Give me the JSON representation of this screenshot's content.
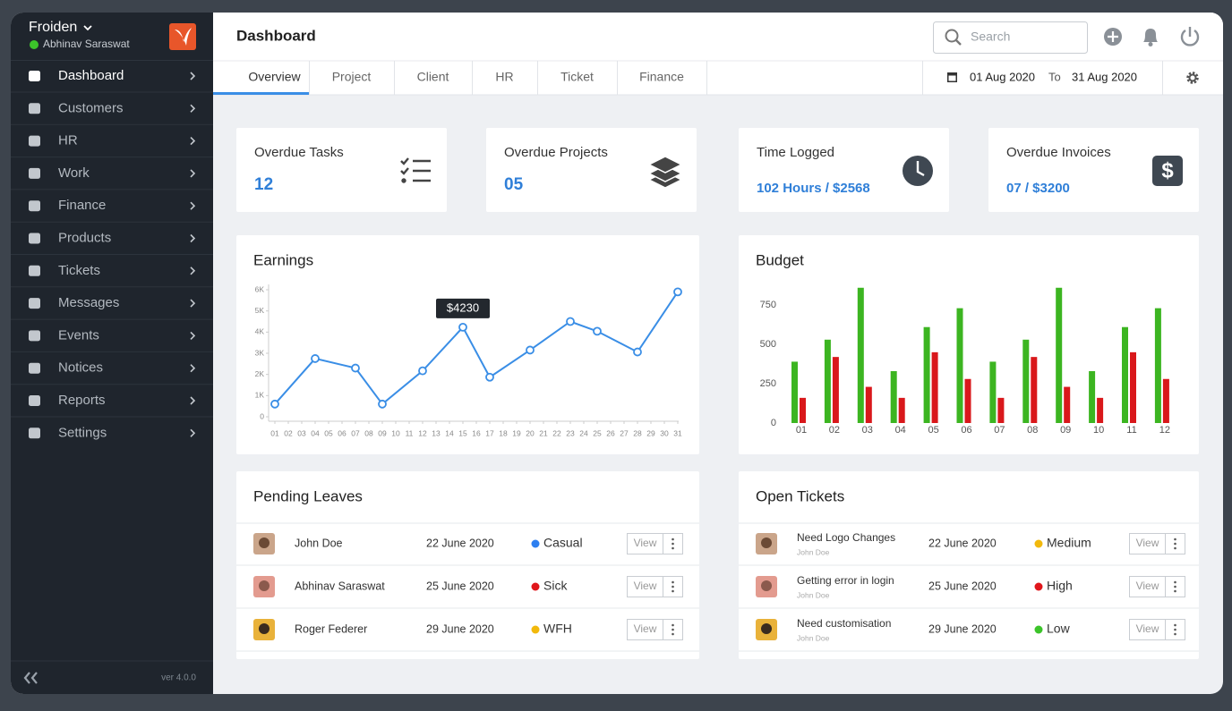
{
  "sidebar": {
    "brand": "Froiden",
    "user": "Abhinav Saraswat",
    "menu": [
      "Dashboard",
      "Customers",
      "HR",
      "Work",
      "Finance",
      "Products",
      "Tickets",
      "Messages",
      "Events",
      "Notices",
      "Reports",
      "Settings"
    ],
    "version": "ver 4.0.0"
  },
  "header": {
    "title": "Dashboard",
    "search_placeholder": "Search"
  },
  "tabs": [
    "Overview",
    "Project",
    "Client",
    "HR",
    "Ticket",
    "Finance"
  ],
  "date_range": {
    "from": "01 Aug 2020",
    "separator": "To",
    "to": "31 Aug 2020"
  },
  "stats": [
    {
      "title": "Overdue Tasks",
      "value": "12"
    },
    {
      "title": "Overdue Projects",
      "value": "05"
    },
    {
      "title": "Time Logged",
      "value": "102 Hours / $2568"
    },
    {
      "title": "Overdue Invoices",
      "value": "07 / $3200"
    }
  ],
  "earnings": {
    "type": "line",
    "title": "Earnings",
    "color": "#3a8ee6",
    "x": [
      1,
      4,
      7,
      9,
      12,
      15,
      17,
      20,
      23,
      25,
      28,
      31
    ],
    "values": [
      600,
      2750,
      2300,
      600,
      2170,
      4230,
      1870,
      3150,
      4500,
      4040,
      3060,
      5900
    ],
    "tooltip": "$4230",
    "xlim": [
      1,
      31
    ],
    "xticks": [
      {
        "value": 1,
        "label": "01"
      },
      {
        "value": 2,
        "label": "02"
      },
      {
        "value": 3,
        "label": "03"
      },
      {
        "value": 4,
        "label": "04"
      },
      {
        "value": 5,
        "label": "05"
      },
      {
        "value": 6,
        "label": "06"
      },
      {
        "value": 7,
        "label": "07"
      },
      {
        "value": 8,
        "label": "08"
      },
      {
        "value": 9,
        "label": "09"
      },
      {
        "value": 10,
        "label": "10"
      },
      {
        "value": 11,
        "label": "11"
      },
      {
        "value": 12,
        "label": "12"
      },
      {
        "value": 13,
        "label": "13"
      },
      {
        "value": 14,
        "label": "14"
      },
      {
        "value": 15,
        "label": "15"
      },
      {
        "value": 16,
        "label": "16"
      },
      {
        "value": 17,
        "label": "17"
      },
      {
        "value": 18,
        "label": "18"
      },
      {
        "value": 19,
        "label": "19"
      },
      {
        "value": 20,
        "label": "20"
      },
      {
        "value": 21,
        "label": "21"
      },
      {
        "value": 22,
        "label": "22"
      },
      {
        "value": 23,
        "label": "23"
      },
      {
        "value": 24,
        "label": "24"
      },
      {
        "value": 25,
        "label": "25"
      },
      {
        "value": 26,
        "label": "26"
      },
      {
        "value": 27,
        "label": "27"
      },
      {
        "value": 28,
        "label": "28"
      },
      {
        "value": 29,
        "label": "29"
      },
      {
        "value": 30,
        "label": "30"
      },
      {
        "value": 31,
        "label": "31"
      }
    ],
    "ylim": [
      0,
      6000
    ],
    "yticks": [
      {
        "value": 0,
        "label": "0"
      },
      {
        "value": 1000,
        "label": "1K"
      },
      {
        "value": 2000,
        "label": "2K"
      },
      {
        "value": 3000,
        "label": "3K"
      },
      {
        "value": 4000,
        "label": "4K"
      },
      {
        "value": 5000,
        "label": "5K"
      },
      {
        "value": 6000,
        "label": "6K"
      }
    ]
  },
  "budget": {
    "type": "bar",
    "title": "Budget",
    "categories": [
      "01",
      "02",
      "03",
      "04",
      "05",
      "06",
      "07",
      "08",
      "09",
      "10",
      "11",
      "12"
    ],
    "series": [
      {
        "color": "#3cb521",
        "values": [
          390,
          530,
          860,
          330,
          610,
          730,
          390,
          530,
          860,
          330,
          610,
          730
        ]
      },
      {
        "color": "#d9181b",
        "values": [
          160,
          420,
          230,
          160,
          450,
          280,
          160,
          420,
          230,
          160,
          450,
          280
        ]
      }
    ],
    "ylim": [
      0,
      870
    ],
    "yticks": [
      0,
      250,
      500,
      750
    ]
  },
  "pending_leaves": {
    "title": "Pending Leaves",
    "action": "View",
    "rows": [
      {
        "name": "John Doe",
        "date": "22 June 2020",
        "type": "Casual",
        "color": "#2d7ff0"
      },
      {
        "name": "Abhinav Saraswat",
        "date": "25 June 2020",
        "type": "Sick",
        "color": "#e0161b"
      },
      {
        "name": "Roger Federer",
        "date": "29 June 2020",
        "type": "WFH",
        "color": "#f2b90c"
      }
    ]
  },
  "open_tickets": {
    "title": "Open Tickets",
    "action": "View",
    "rows": [
      {
        "subject": "Need Logo Changes",
        "author": "John Doe",
        "date": "22 June 2020",
        "priority": "Medium",
        "color": "#f2b90c"
      },
      {
        "subject": "Getting error in login",
        "author": "John Doe",
        "date": "25 June 2020",
        "priority": "High",
        "color": "#e0161b"
      },
      {
        "subject": "Need customisation",
        "author": "John Doe",
        "date": "29 June 2020",
        "priority": "Low",
        "color": "#3cc42a"
      }
    ]
  }
}
